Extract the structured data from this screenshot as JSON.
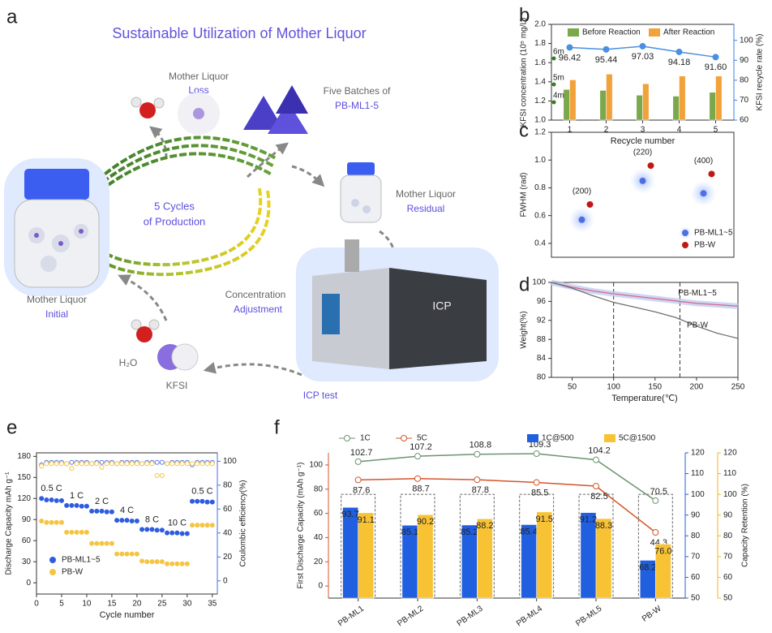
{
  "diagram": {
    "panel": "a",
    "title": "Sustainable Utilization of Mother Liquor",
    "loss_title": "Mother Liquor",
    "loss_label": "Loss",
    "batches_title": "Five Batches of",
    "batches_label": "PB-ML1-5",
    "residual_title": "Mother Liquor",
    "residual_label": "Residual",
    "cycle_lines": [
      "5 Cycles",
      "of Production"
    ],
    "adjust_title": "Concentration",
    "adjust_label": "Adjustment",
    "initial_title": "Mother Liquor",
    "initial_label": "Initial",
    "water": "H₂O",
    "kfsi": "KFSI",
    "icp_test": "ICP test",
    "icp": "ICP"
  },
  "chart_data": [
    {
      "panel": "b",
      "type": "bar",
      "categories": [
        "1",
        "2",
        "3",
        "4",
        "5"
      ],
      "xlabel": "Recycle number",
      "ylabel": "KFSI concentration (10⁵ mg/L)",
      "y2label": "KFSI recycle rate (%)",
      "ylim": [
        1.0,
        2.0
      ],
      "yticks": [
        {
          "value": 1,
          "label": "1.0"
        },
        1.2,
        1.4,
        1.6,
        1.8,
        {
          "value": 2,
          "label": "2.0"
        }
      ],
      "y2lim": [
        60,
        108
      ],
      "y2ticks": [
        60,
        70,
        80,
        90,
        100
      ],
      "annotations": [
        "6m",
        "5m",
        "4m"
      ],
      "series": [
        {
          "name": "Before Reaction",
          "type": "bar",
          "color": "#7aa84a",
          "values": [
            1.32,
            1.31,
            1.26,
            1.25,
            1.29
          ]
        },
        {
          "name": "After Reaction",
          "type": "bar",
          "color": "#f2a23a",
          "values": [
            1.42,
            1.48,
            1.38,
            1.46,
            1.46
          ]
        },
        {
          "type": "line",
          "axis": "y2",
          "color": "#4a8fe0",
          "values": [
            96.42,
            95.44,
            97.03,
            94.18,
            91.6
          ],
          "value_labels": [
            "96.42",
            "95.44",
            "97.03",
            "94.18",
            "91.60"
          ]
        }
      ]
    },
    {
      "panel": "c",
      "type": "scatter",
      "categories": [
        "(200)",
        "(220)",
        "(400)"
      ],
      "ylabel": "FWHM (rad)",
      "ylim": [
        0.3,
        1.2
      ],
      "yticks": [
        0.4,
        0.6,
        0.8,
        {
          "value": 1,
          "label": "1.0"
        },
        1.2
      ],
      "series": [
        {
          "name": "PB-ML1~5",
          "color": "#4f6fe0",
          "values": [
            0.57,
            0.85,
            0.76
          ]
        },
        {
          "name": "PB-W",
          "color": "#c01818",
          "values": [
            0.68,
            0.96,
            0.9
          ]
        }
      ]
    },
    {
      "panel": "d",
      "type": "line",
      "xlabel": "Temperature(℃)",
      "ylabel": "Weight(%)",
      "x": [
        25,
        50,
        75,
        100,
        125,
        150,
        175,
        200,
        225,
        250
      ],
      "xlim": [
        25,
        250
      ],
      "xticks": [
        50,
        100,
        150,
        200,
        250
      ],
      "ylim": [
        80,
        100
      ],
      "yticks": [
        80,
        84,
        88,
        92,
        96,
        100
      ],
      "vlines": [
        100,
        180
      ],
      "series": [
        {
          "name": "PB-ML1~5",
          "color": "#d46a8c",
          "values": [
            100,
            99,
            98.2,
            97.6,
            97.1,
            96.6,
            96.1,
            95.6,
            95.3,
            95.0
          ]
        },
        {
          "name": "PB-W",
          "color": "#707070",
          "values": [
            100,
            98.8,
            97.2,
            95.8,
            94.8,
            93.8,
            92.6,
            90.8,
            89.3,
            88.2
          ]
        }
      ]
    },
    {
      "panel": "e",
      "type": "scatter",
      "xlabel": "Cycle number",
      "ylabel": "Discharge Capacity mAh g⁻¹",
      "y2label": "Coulombic efficiency(%)",
      "x": [
        1,
        2,
        3,
        4,
        5,
        6,
        7,
        8,
        9,
        10,
        11,
        12,
        13,
        14,
        15,
        16,
        17,
        18,
        19,
        20,
        21,
        22,
        23,
        24,
        25,
        26,
        27,
        28,
        29,
        30,
        31,
        32,
        33,
        34,
        35
      ],
      "xlim": [
        0,
        36
      ],
      "xticks": [
        0,
        5,
        10,
        15,
        20,
        25,
        30,
        35
      ],
      "ylim": [
        -16,
        185
      ],
      "yticks": [
        0,
        30,
        60,
        90,
        120,
        150,
        180
      ],
      "y2lim": [
        -11,
        107
      ],
      "y2ticks": [
        0,
        20,
        40,
        60,
        80,
        100
      ],
      "rates": [
        "0.5 C",
        "1 C",
        "2 C",
        "4 C",
        "8 C",
        "10 C",
        "0.5 C"
      ],
      "series": [
        {
          "name": "PB-ML1~5",
          "color": "#2e5ce0",
          "values": [
            120,
            118,
            118,
            117,
            117,
            110,
            110,
            110,
            109,
            109,
            102,
            102,
            102,
            101,
            101,
            89,
            89,
            89,
            88,
            88,
            76,
            76,
            76,
            75,
            75,
            71,
            71,
            71,
            70,
            70,
            116,
            116,
            116,
            115,
            115
          ]
        },
        {
          "name": "PB-W",
          "color": "#f5c542",
          "values": [
            88,
            86,
            86,
            86,
            86,
            72,
            72,
            72,
            72,
            72,
            56,
            56,
            56,
            56,
            56,
            41,
            41,
            41,
            41,
            41,
            31,
            30,
            30,
            30,
            30,
            27,
            27,
            27,
            27,
            27,
            82,
            82,
            82,
            82,
            82
          ]
        },
        {
          "axis": "y2",
          "color": "#5a78e8",
          "values": [
            97,
            99,
            99,
            99,
            99,
            98,
            99,
            99,
            99,
            99,
            98,
            99,
            99,
            99,
            99,
            98,
            99,
            99,
            99,
            99,
            98,
            99,
            99,
            99,
            99,
            98,
            99,
            99,
            99,
            99,
            97,
            99,
            99,
            99,
            99
          ]
        },
        {
          "axis": "y2",
          "color": "#f5c542",
          "values": [
            96,
            98,
            98,
            98,
            98,
            98,
            94,
            98,
            98,
            98,
            98,
            98,
            95,
            98,
            98,
            98,
            98,
            98,
            98,
            98,
            98,
            98,
            98,
            88,
            88,
            98,
            98,
            98,
            98,
            98,
            98,
            98,
            98,
            98,
            98
          ]
        }
      ]
    },
    {
      "panel": "f",
      "type": "bar",
      "categories": [
        "PB-ML1",
        "PB-ML2",
        "PB-ML3",
        "PB-ML4",
        "PB-ML5",
        "PB-W"
      ],
      "ylabel": "First Discharge Capacity (mAh g⁻¹)",
      "y3label": "Capacity Retention (%)",
      "ylim": [
        -10,
        110
      ],
      "yticks": [
        0,
        20,
        40,
        60,
        80,
        100
      ],
      "y2lim": [
        50,
        120
      ],
      "y2ticks": [
        50,
        60,
        70,
        80,
        90,
        100,
        110,
        120
      ],
      "y3lim": [
        50,
        120
      ],
      "y3ticks": [
        50,
        60,
        70,
        80,
        90,
        100,
        110,
        120
      ],
      "reference": 100,
      "series": [
        {
          "name": "1C",
          "type": "line",
          "color": "#6d9470",
          "values": [
            102.7,
            107.2,
            108.8,
            109.3,
            104.2,
            70.5
          ]
        },
        {
          "name": "5C",
          "type": "line",
          "color": "#d4552b",
          "values": [
            87.6,
            88.7,
            87.8,
            85.5,
            82.5,
            44.3
          ]
        },
        {
          "name": "1C@500",
          "type": "bar",
          "axis": "y2",
          "color": "#1f5fe0",
          "values": [
            93.7,
            85.1,
            85.2,
            85.4,
            91.2,
            68.2
          ]
        },
        {
          "name": "5C@1500",
          "type": "bar",
          "axis": "y3",
          "color": "#f7c234",
          "values": [
            91.1,
            90.2,
            88.2,
            91.5,
            88.3,
            76.0
          ],
          "value_labels": [
            "91.1",
            "90.2",
            "88.2",
            "91.5",
            "88.3",
            "76.0"
          ]
        }
      ]
    }
  ]
}
